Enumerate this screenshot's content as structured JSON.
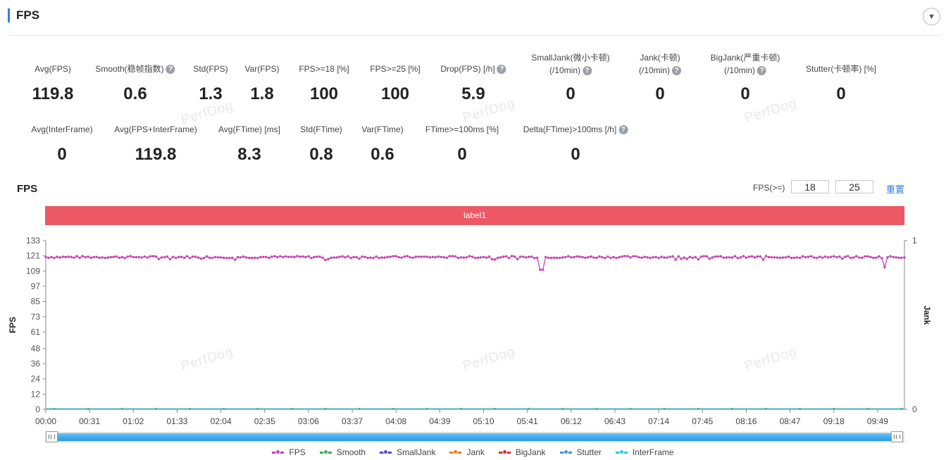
{
  "panel": {
    "title": "FPS",
    "collapse_icon": "▼"
  },
  "stats_row1": [
    {
      "label": "Avg(FPS)",
      "value": "119.8",
      "help": false
    },
    {
      "label": "Smooth(稳帧指数)",
      "value": "0.6",
      "help": true
    },
    {
      "label": "Std(FPS)",
      "value": "1.3",
      "help": false
    },
    {
      "label": "Var(FPS)",
      "value": "1.8",
      "help": false
    },
    {
      "label": "FPS>=18 [%]",
      "value": "100",
      "help": false
    },
    {
      "label": "FPS>=25 [%]",
      "value": "100",
      "help": false
    },
    {
      "label": "Drop(FPS) [/h]",
      "value": "5.9",
      "help": true
    },
    {
      "label": "SmallJank(微小卡顿)",
      "label2": "(/10min)",
      "value": "0",
      "help": true
    },
    {
      "label": "Jank(卡顿)",
      "label2": "(/10min)",
      "value": "0",
      "help": true
    },
    {
      "label": "BigJank(严重卡顿)",
      "label2": "(/10min)",
      "value": "0",
      "help": true
    },
    {
      "label": "Stutter(卡顿率) [%]",
      "value": "0",
      "help": false
    }
  ],
  "stats_row2": [
    {
      "label": "Avg(InterFrame)",
      "value": "0",
      "help": false
    },
    {
      "label": "Avg(FPS+InterFrame)",
      "value": "119.8",
      "help": false
    },
    {
      "label": "Avg(FTime) [ms]",
      "value": "8.3",
      "help": false
    },
    {
      "label": "Std(FTime)",
      "value": "0.8",
      "help": false
    },
    {
      "label": "Var(FTime)",
      "value": "0.6",
      "help": false
    },
    {
      "label": "FTime>=100ms [%]",
      "value": "0",
      "help": false
    },
    {
      "label": "Delta(FTime)>100ms [/h]",
      "value": "0",
      "help": true
    }
  ],
  "chart_header": {
    "title": "FPS",
    "threshold_label": "FPS(>=)",
    "threshold_1": "18",
    "threshold_2": "25",
    "reset_label": "重置"
  },
  "label_band": "label1",
  "watermark": "PerfDog",
  "chart_data": {
    "type": "line",
    "ylabel": "FPS",
    "y2label": "Jank",
    "ylim": [
      0,
      133
    ],
    "y2lim": [
      0,
      1
    ],
    "y_ticks": [
      "0",
      "12",
      "24",
      "36",
      "48",
      "61",
      "73",
      "85",
      "97",
      "109",
      "121",
      "133"
    ],
    "y2_ticks": [
      "0",
      "1"
    ],
    "x_ticks": [
      "00:00",
      "00:31",
      "01:02",
      "01:33",
      "02:04",
      "02:35",
      "03:06",
      "03:37",
      "04:08",
      "04:39",
      "05:10",
      "05:41",
      "06:12",
      "06:43",
      "07:14",
      "07:45",
      "08:16",
      "08:47",
      "09:18",
      "09:49"
    ],
    "x_range_seconds": [
      0,
      608
    ],
    "series": [
      {
        "name": "FPS",
        "baseline": 120,
        "dips": [
          {
            "t": 350,
            "value": 110
          },
          {
            "t": 351,
            "value": 109
          },
          {
            "t": 352,
            "value": 110
          },
          {
            "t": 594,
            "value": 112
          }
        ]
      },
      {
        "name": "Smooth",
        "value": 0
      },
      {
        "name": "SmallJank",
        "value": 0
      },
      {
        "name": "Jank",
        "value": 0
      },
      {
        "name": "BigJank",
        "value": 0
      },
      {
        "name": "Stutter",
        "value": 0
      },
      {
        "name": "InterFrame",
        "value": 0
      }
    ]
  },
  "legend": [
    {
      "name": "FPS",
      "color": "#c545b5"
    },
    {
      "name": "Smooth",
      "color": "#3eaa5a"
    },
    {
      "name": "SmallJank",
      "color": "#4b4fd6"
    },
    {
      "name": "Jank",
      "color": "#f07a2a"
    },
    {
      "name": "BigJank",
      "color": "#d92c2c"
    },
    {
      "name": "Stutter",
      "color": "#4b8fe0"
    },
    {
      "name": "InterFrame",
      "color": "#2ec8d8"
    }
  ]
}
